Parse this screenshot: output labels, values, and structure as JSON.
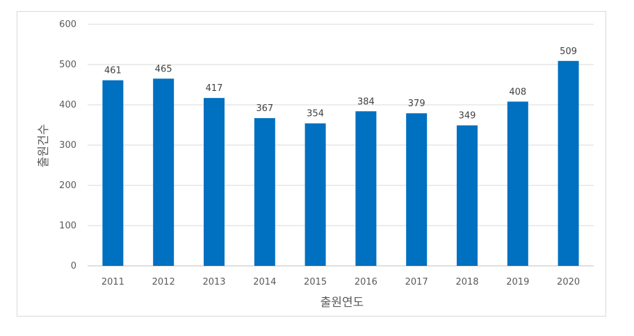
{
  "chart_data": {
    "type": "bar",
    "categories": [
      "2011",
      "2012",
      "2013",
      "2014",
      "2015",
      "2016",
      "2017",
      "2018",
      "2019",
      "2020"
    ],
    "values": [
      461,
      465,
      417,
      367,
      354,
      384,
      379,
      349,
      408,
      509
    ],
    "title": "",
    "xlabel": "출원연도",
    "ylabel": "출원건수",
    "ylim": [
      0,
      600
    ],
    "yticks": [
      0,
      100,
      200,
      300,
      400,
      500,
      600
    ],
    "grid": true,
    "bar_color": "#0070c0",
    "data_labels": true
  }
}
